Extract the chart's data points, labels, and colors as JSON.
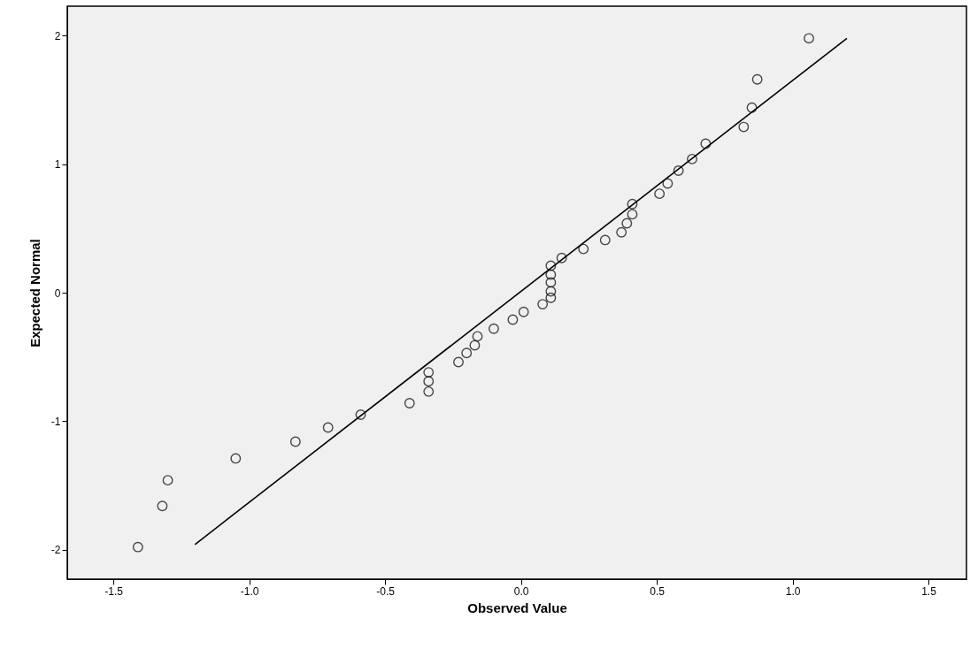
{
  "chart_data": {
    "type": "scatter",
    "xlabel": "Observed Value",
    "ylabel": "Expected Normal",
    "xlim": [
      -1.67,
      1.64
    ],
    "ylim": [
      -2.23,
      2.23
    ],
    "xticks": [
      {
        "value": -1.5,
        "label": "-1.5"
      },
      {
        "value": -1,
        "label": "-1.0"
      },
      {
        "value": -0.5,
        "label": "-0.5"
      },
      {
        "value": 0,
        "label": "0.0"
      },
      {
        "value": 0.5,
        "label": "0.5"
      },
      {
        "value": 1,
        "label": "1.0"
      },
      {
        "value": 1.5,
        "label": "1.5"
      }
    ],
    "yticks": [
      -2,
      -1,
      0,
      1,
      2
    ],
    "series": [
      {
        "marker": "circle",
        "color": "#000000",
        "x": [
          -1.41,
          -1.32,
          -1.3,
          -1.05,
          -0.83,
          -0.71,
          -0.59,
          -0.41,
          -0.34,
          -0.34,
          -0.34,
          -0.23,
          -0.2,
          -0.17,
          -0.16,
          -0.1,
          -0.03,
          0.01,
          0.08,
          0.11,
          0.11,
          0.11,
          0.11,
          0.11,
          0.15,
          0.23,
          0.31,
          0.37,
          0.39,
          0.41,
          0.41,
          0.51,
          0.54,
          0.58,
          0.63,
          0.68,
          0.82,
          0.85,
          0.87,
          1.06
        ],
        "values": [
          -1.98,
          -1.66,
          -1.46,
          -1.29,
          -1.16,
          -1.05,
          -0.95,
          -0.86,
          -0.77,
          -0.69,
          -0.62,
          -0.54,
          -0.47,
          -0.41,
          -0.34,
          -0.28,
          -0.21,
          -0.15,
          -0.09,
          -0.04,
          0.01,
          0.08,
          0.14,
          0.21,
          0.27,
          0.34,
          0.41,
          0.47,
          0.54,
          0.61,
          0.69,
          0.77,
          0.85,
          0.95,
          1.04,
          1.16,
          1.29,
          1.44,
          1.66,
          1.98
        ]
      },
      {
        "type": "line",
        "color": "#000000",
        "x": [
          -1.2,
          1.2
        ],
        "values": [
          -1.96,
          1.98
        ]
      }
    ]
  }
}
